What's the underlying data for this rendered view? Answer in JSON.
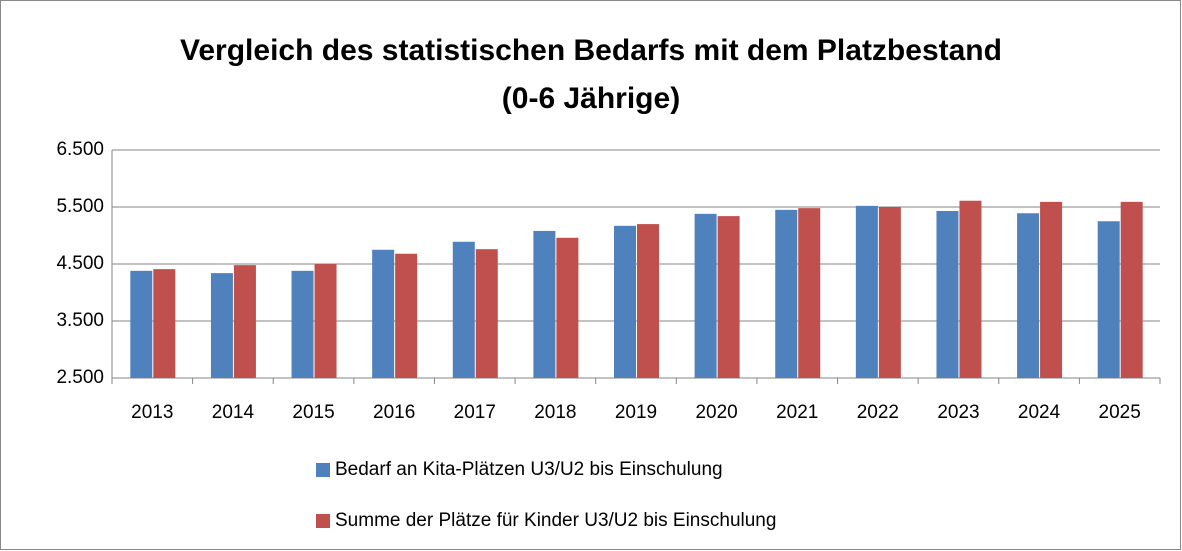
{
  "chart_data": {
    "type": "bar",
    "title": [
      "Vergleich des statistischen Bedarfs mit dem Platzbestand",
      "(0-6 Jährige)"
    ],
    "categories": [
      "2013",
      "2014",
      "2015",
      "2016",
      "2017",
      "2018",
      "2019",
      "2020",
      "2021",
      "2022",
      "2023",
      "2024",
      "2025"
    ],
    "series": [
      {
        "name": "Bedarf an Kita-Plätzen U3/U2 bis Einschulung",
        "color": "#4f81bd",
        "values": [
          4380,
          4340,
          4380,
          4750,
          4890,
          5080,
          5170,
          5380,
          5450,
          5520,
          5430,
          5390,
          5250
        ]
      },
      {
        "name": "Summe der Plätze für Kinder U3/U2 bis Einschulung",
        "color": "#c0504d",
        "values": [
          4410,
          4480,
          4500,
          4680,
          4760,
          4960,
          5200,
          5340,
          5480,
          5500,
          5610,
          5590,
          5590
        ]
      }
    ],
    "ylim": [
      2500,
      6500
    ],
    "yticks": [
      {
        "value": 2500,
        "label": "2.500"
      },
      {
        "value": 3500,
        "label": "3.500"
      },
      {
        "value": 4500,
        "label": "4.500"
      },
      {
        "value": 5500,
        "label": "5.500"
      },
      {
        "value": 6500,
        "label": "6.500"
      }
    ],
    "grid": true,
    "legend": "bottom"
  }
}
